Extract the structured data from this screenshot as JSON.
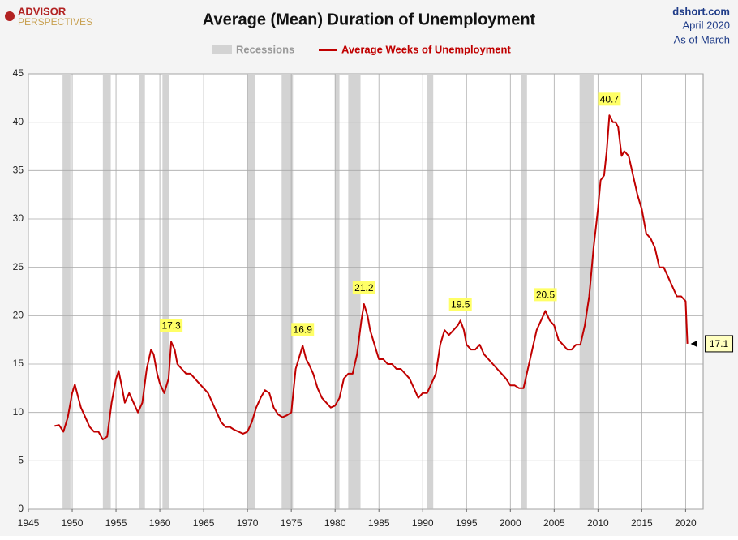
{
  "header": {
    "logo_top": "ADVISOR",
    "logo_bottom": "PERSPECTIVES",
    "source": "dshort.com",
    "date": "April 2020",
    "note": "As of March"
  },
  "chart_data": {
    "type": "line",
    "title": "Average (Mean) Duration of Unemployment",
    "recessions_label": "Recessions",
    "recession_color": "#d3d3d3",
    "recessions": [
      [
        1948.9,
        1949.8
      ],
      [
        1953.5,
        1954.4
      ],
      [
        1957.6,
        1958.3
      ],
      [
        1960.3,
        1961.1
      ],
      [
        1969.9,
        1970.9
      ],
      [
        1973.9,
        1975.2
      ],
      [
        1980.0,
        1980.5
      ],
      [
        1981.5,
        1982.9
      ],
      [
        1990.5,
        1991.2
      ],
      [
        2001.2,
        2001.9
      ],
      [
        2007.9,
        2009.5
      ]
    ],
    "x": [
      1948.0,
      1948.5,
      1949.0,
      1949.5,
      1950.0,
      1950.3,
      1950.7,
      1951.0,
      1951.5,
      1952.0,
      1952.5,
      1953.0,
      1953.5,
      1954.0,
      1954.5,
      1955.0,
      1955.3,
      1955.7,
      1956.0,
      1956.5,
      1957.0,
      1957.5,
      1958.0,
      1958.5,
      1959.0,
      1959.3,
      1959.7,
      1960.0,
      1960.5,
      1961.0,
      1961.3,
      1961.7,
      1962.0,
      1962.5,
      1963.0,
      1963.5,
      1964.0,
      1964.5,
      1965.0,
      1965.5,
      1966.0,
      1966.5,
      1967.0,
      1967.5,
      1968.0,
      1968.5,
      1969.0,
      1969.5,
      1970.0,
      1970.5,
      1971.0,
      1971.5,
      1972.0,
      1972.5,
      1973.0,
      1973.5,
      1974.0,
      1974.5,
      1975.0,
      1975.5,
      1976.0,
      1976.3,
      1976.7,
      1977.0,
      1977.5,
      1978.0,
      1978.5,
      1979.0,
      1979.5,
      1980.0,
      1980.5,
      1981.0,
      1981.5,
      1982.0,
      1982.5,
      1983.0,
      1983.3,
      1983.7,
      1984.0,
      1984.5,
      1985.0,
      1985.5,
      1986.0,
      1986.5,
      1987.0,
      1987.5,
      1988.0,
      1988.5,
      1989.0,
      1989.5,
      1990.0,
      1990.5,
      1991.0,
      1991.5,
      1992.0,
      1992.5,
      1993.0,
      1993.5,
      1994.0,
      1994.3,
      1994.7,
      1995.0,
      1995.5,
      1996.0,
      1996.5,
      1997.0,
      1997.5,
      1998.0,
      1998.5,
      1999.0,
      1999.5,
      2000.0,
      2000.5,
      2001.0,
      2001.5,
      2002.0,
      2002.5,
      2003.0,
      2003.5,
      2004.0,
      2004.5,
      2005.0,
      2005.5,
      2006.0,
      2006.5,
      2007.0,
      2007.5,
      2008.0,
      2008.5,
      2009.0,
      2009.5,
      2010.0,
      2010.3,
      2010.7,
      2011.0,
      2011.3,
      2011.7,
      2012.0,
      2012.3,
      2012.7,
      2013.0,
      2013.5,
      2014.0,
      2014.5,
      2015.0,
      2015.5,
      2016.0,
      2016.5,
      2017.0,
      2017.5,
      2018.0,
      2018.5,
      2019.0,
      2019.5,
      2020.0,
      2020.2
    ],
    "series": [
      {
        "name": "Average Weeks of Unemployment",
        "color": "#c00000",
        "values": [
          8.6,
          8.7,
          8.0,
          9.5,
          12.0,
          12.9,
          11.5,
          10.5,
          9.5,
          8.5,
          8.0,
          8.0,
          7.2,
          7.5,
          11.0,
          13.5,
          14.3,
          12.5,
          11.0,
          12.0,
          11.0,
          10.0,
          11.0,
          14.5,
          16.5,
          16.0,
          14.0,
          13.0,
          12.0,
          13.5,
          17.3,
          16.5,
          15.0,
          14.5,
          14.0,
          14.0,
          13.5,
          13.0,
          12.5,
          12.0,
          11.0,
          10.0,
          9.0,
          8.5,
          8.5,
          8.2,
          8.0,
          7.8,
          8.0,
          9.0,
          10.5,
          11.5,
          12.3,
          12.0,
          10.5,
          9.8,
          9.5,
          9.7,
          10.0,
          14.5,
          16.0,
          16.9,
          15.5,
          15.0,
          14.0,
          12.5,
          11.5,
          11.0,
          10.5,
          10.7,
          11.5,
          13.5,
          14.0,
          14.0,
          16.0,
          19.5,
          21.2,
          20.0,
          18.5,
          17.0,
          15.5,
          15.5,
          15.0,
          15.0,
          14.5,
          14.5,
          14.0,
          13.5,
          12.5,
          11.5,
          12.0,
          12.0,
          13.0,
          14.0,
          17.0,
          18.5,
          18.0,
          18.5,
          19.0,
          19.5,
          18.5,
          17.0,
          16.5,
          16.5,
          17.0,
          16.0,
          15.5,
          15.0,
          14.5,
          14.0,
          13.5,
          12.8,
          12.8,
          12.5,
          12.5,
          14.5,
          16.5,
          18.5,
          19.5,
          20.5,
          19.5,
          19.0,
          17.5,
          17.0,
          16.5,
          16.5,
          17.0,
          17.0,
          19.0,
          22.0,
          27.0,
          31.0,
          34.0,
          34.5,
          37.0,
          40.7,
          40.0,
          40.0,
          39.5,
          36.5,
          37.0,
          36.5,
          34.5,
          32.5,
          31.0,
          28.5,
          28.0,
          27.0,
          25.0,
          25.0,
          24.0,
          23.0,
          22.0,
          22.0,
          21.5,
          17.1
        ]
      }
    ],
    "annotations": [
      {
        "x": 1961.3,
        "y": 17.3,
        "position": "above"
      },
      {
        "x": 1976.3,
        "y": 16.9,
        "position": "above"
      },
      {
        "x": 1983.3,
        "y": 21.2,
        "position": "above"
      },
      {
        "x": 1994.3,
        "y": 19.5,
        "position": "above"
      },
      {
        "x": 2004.0,
        "y": 20.5,
        "position": "above"
      },
      {
        "x": 2011.3,
        "y": 40.7,
        "position": "above"
      },
      {
        "x": 2020.2,
        "y": 17.1,
        "position": "right"
      }
    ],
    "xlim": [
      1945,
      2022
    ],
    "xticks": [
      1945,
      1950,
      1955,
      1960,
      1965,
      1970,
      1975,
      1980,
      1985,
      1990,
      1995,
      2000,
      2005,
      2010,
      2015,
      2020
    ],
    "ylim": [
      0,
      45
    ],
    "yticks": [
      0,
      5,
      10,
      15,
      20,
      25,
      30,
      35,
      40,
      45
    ],
    "grid": true
  }
}
